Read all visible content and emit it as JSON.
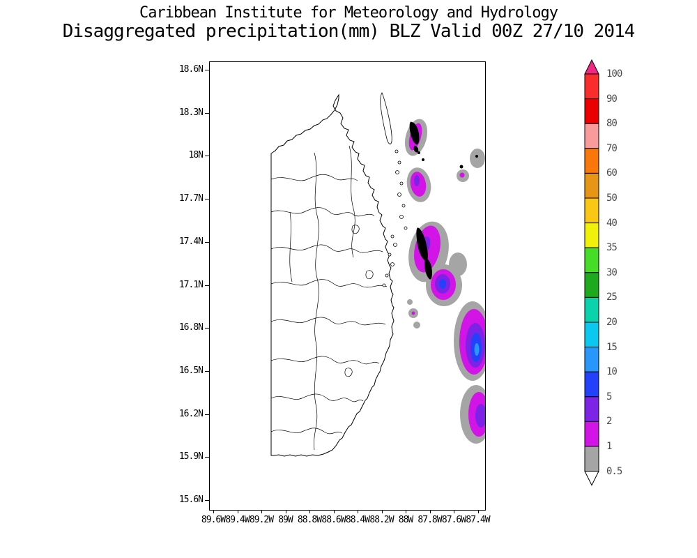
{
  "title": {
    "line1": "Caribbean Institute for Meteorology and Hydrology",
    "line2": "Disaggregated precipitation(mm) BLZ Valid 00Z 27/10 2014"
  },
  "map": {
    "lat_ticks": [
      "18.6N",
      "18.3N",
      "18N",
      "17.7N",
      "17.4N",
      "17.1N",
      "16.8N",
      "16.5N",
      "16.2N",
      "15.9N",
      "15.6N"
    ],
    "lon_ticks": [
      "89.6W",
      "89.4W",
      "89.2W",
      "89W",
      "88.8W",
      "88.6W",
      "88.4W",
      "88.2W",
      "88W",
      "87.8W",
      "87.6W",
      "87.4W"
    ]
  },
  "colorbar": {
    "labels": [
      "100",
      "90",
      "80",
      "70",
      "60",
      "50",
      "40",
      "35",
      "30",
      "25",
      "20",
      "15",
      "10",
      "5",
      "2",
      "1",
      "0.5"
    ],
    "segment_colors_top_to_bottom": [
      "#fa2d2d",
      "#eb0000",
      "#fa9b9b",
      "#fa780a",
      "#e69614",
      "#fac814",
      "#f0f00a",
      "#46dc28",
      "#1eaa1e",
      "#0ad2aa",
      "#0ac8f0",
      "#2896fa",
      "#2341fa",
      "#7d23e6",
      "#d214e6",
      "#a5a5a5"
    ],
    "arrow_top_color": "#f02882",
    "arrow_bottom_color": "#ffffff"
  },
  "precip_colors": {
    "gray": "#a5a5a5",
    "magenta": "#d214e6",
    "purple": "#7d23e6",
    "blue": "#2341fa",
    "light_blue": "#2896fa"
  },
  "chart_data": {
    "type": "map",
    "title": "Disaggregated precipitation(mm) BLZ Valid 00Z 27/10 2014",
    "institution": "Caribbean Institute for Meteorology and Hydrology",
    "region": "BLZ (Belize)",
    "valid": "00Z 27/10 2014",
    "lat_range": [
      "15.6N",
      "18.6N"
    ],
    "lon_range": [
      "89.6W",
      "87.4W"
    ],
    "colorbar_levels_mm": [
      0.5,
      1,
      2,
      5,
      10,
      15,
      20,
      25,
      30,
      35,
      40,
      50,
      60,
      70,
      80,
      90,
      100
    ],
    "precip_features": [
      {
        "location": "offshore cayes near 18.2N 88.1W",
        "intensity_mm": "1-2"
      },
      {
        "location": "near 17.8N 88.15W",
        "intensity_mm": "2-5"
      },
      {
        "location": "near 17.1N 87.95W",
        "intensity_mm": "5-10"
      },
      {
        "location": "near 16.6-16.8N 87.4W at east edge",
        "intensity_mm": "10-15"
      },
      {
        "location": "near 16.2N 87.4W at east edge",
        "intensity_mm": "2-5"
      }
    ],
    "land": "Belize mainland with district/watershed boundaries, no shading over land"
  }
}
